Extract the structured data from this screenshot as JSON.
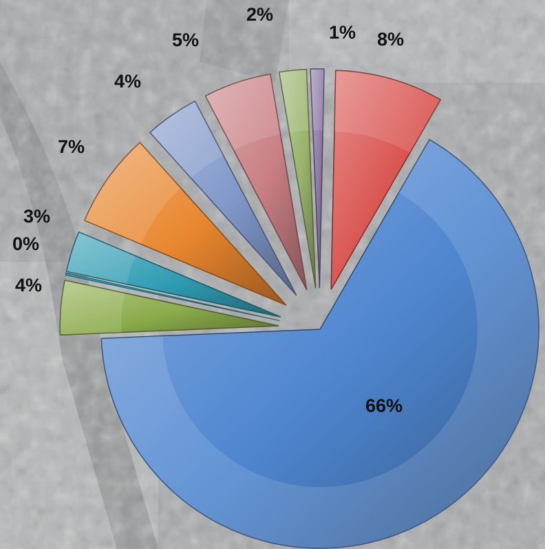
{
  "chart_data": {
    "type": "pie",
    "title": "",
    "exploded": true,
    "style": "3d-beveled",
    "slices": [
      {
        "label": "66%",
        "value": 66,
        "color": "#4f86d0"
      },
      {
        "label": "4%",
        "value": 4,
        "color": "#8bab4a"
      },
      {
        "label": "0%",
        "value": 0,
        "color": "#2f9cb3"
      },
      {
        "label": "3%",
        "value": 3,
        "color": "#2f9cb3"
      },
      {
        "label": "7%",
        "value": 7,
        "color": "#e8862e"
      },
      {
        "label": "4%",
        "value": 4,
        "color": "#7f97c9"
      },
      {
        "label": "5%",
        "value": 5,
        "color": "#c97f84"
      },
      {
        "label": "2%",
        "value": 2,
        "color": "#98b36b"
      },
      {
        "label": "1%",
        "value": 1,
        "color": "#8b7aa6"
      },
      {
        "label": "8%",
        "value": 8,
        "color": "#d9534f"
      }
    ]
  }
}
